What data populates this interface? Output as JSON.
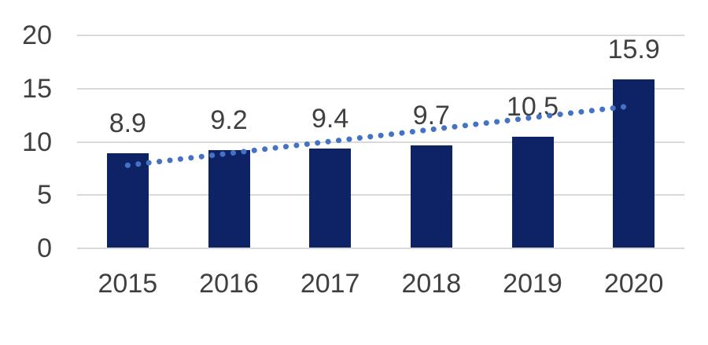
{
  "chart_data": {
    "type": "bar",
    "title": "",
    "xlabel": "",
    "ylabel": "",
    "categories": [
      "2015",
      "2016",
      "2017",
      "2018",
      "2019",
      "2020"
    ],
    "values": [
      8.9,
      9.2,
      9.4,
      9.7,
      10.5,
      15.9
    ],
    "data_labels": [
      "8.9",
      "9.2",
      "9.4",
      "9.7",
      "10.5",
      "15.9"
    ],
    "ylim": [
      0,
      20
    ],
    "yticks": [
      0,
      5,
      10,
      15,
      20
    ],
    "ytick_labels": [
      "0",
      "5",
      "10",
      "15",
      "20"
    ],
    "grid": "horizontal",
    "legend": "none",
    "trendline": {
      "type": "linear",
      "style": "dotted",
      "start_value": 7.8,
      "end_value": 13.4
    },
    "colors": {
      "bar": "#0E2365",
      "trendline": "#4472C4",
      "gridline": "#D9D9D9",
      "text": "#404040",
      "background": "#FFFFFF"
    }
  }
}
